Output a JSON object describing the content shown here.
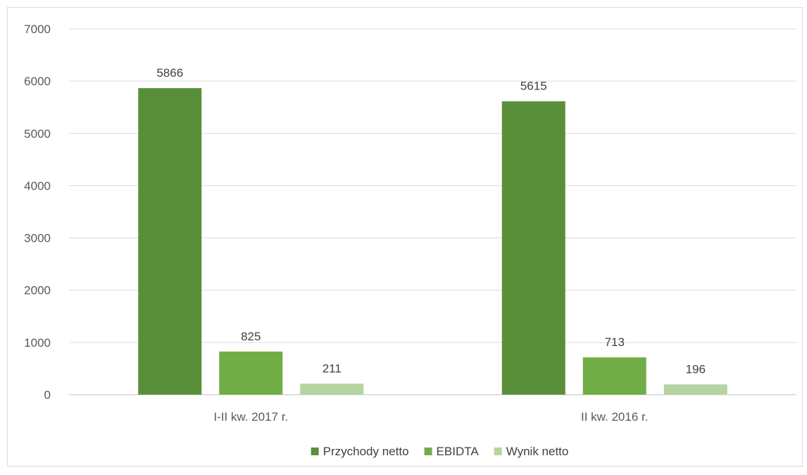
{
  "chart_data": {
    "type": "bar",
    "title": "",
    "xlabel": "",
    "ylabel": "",
    "categories": [
      "I-II kw. 2017 r.",
      "II kw. 2016 r."
    ],
    "series": [
      {
        "name": "Przychody netto",
        "values": [
          5866,
          5615
        ],
        "color": "#5a8f3a"
      },
      {
        "name": "EBIDTA",
        "values": [
          825,
          713
        ],
        "color": "#70ad47"
      },
      {
        "name": "Wynik netto",
        "values": [
          211,
          196
        ],
        "color": "#b6d3a2"
      }
    ],
    "ylim": [
      0,
      7000
    ],
    "yticks": [
      0,
      1000,
      2000,
      3000,
      4000,
      5000,
      6000,
      7000
    ],
    "grid": true,
    "legend_position": "bottom"
  }
}
